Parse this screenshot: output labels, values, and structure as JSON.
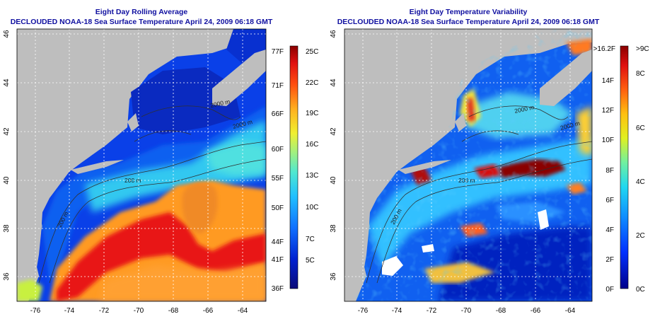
{
  "left_panel": {
    "title_line1": "Eight Day Rolling Average",
    "title_line2": "DECLOUDED NOAA-18 Sea Surface Temperature April 24, 2009 06:18 GMT",
    "x_ticks": [
      "-76",
      "-74",
      "-72",
      "-70",
      "-68",
      "-66",
      "-64"
    ],
    "y_ticks": [
      "36",
      "38",
      "40",
      "42",
      "44",
      "46"
    ],
    "depth_labels": [
      "200 m",
      "2000 m",
      "200 m",
      "2000 m"
    ],
    "colorbar_f_labels": [
      "77F",
      "71F",
      "66F",
      "60F",
      "55F",
      "50F",
      "44F",
      "41F",
      "36F"
    ],
    "colorbar_c_labels": [
      "25C",
      "22C",
      "19C",
      "16C",
      "13C",
      "10C",
      "7C",
      "5C"
    ]
  },
  "right_panel": {
    "title_line1": "Eight Day Temperature Variability",
    "title_line2": "DECLOUDED NOAA-18 Sea Surface Temperature April 24, 2009 06:18 GMT",
    "x_ticks": [
      "-76",
      "-74",
      "-72",
      "-70",
      "-68",
      "-66",
      "-64"
    ],
    "y_ticks": [
      "36",
      "38",
      "40",
      "42",
      "44",
      "46"
    ],
    "depth_labels": [
      "200 m",
      "2000 m",
      "200 m",
      "2000 m"
    ],
    "colorbar_f_labels": [
      ">16.2F",
      "14F",
      "12F",
      "10F",
      "8F",
      "6F",
      "4F",
      "2F",
      "0F"
    ],
    "colorbar_c_labels": [
      ">9C",
      "8C",
      "6C",
      "4C",
      "2C",
      "0C"
    ]
  },
  "colors": {
    "land": "#bebebe",
    "title": "#1010a0",
    "grid": "#ffffff"
  }
}
